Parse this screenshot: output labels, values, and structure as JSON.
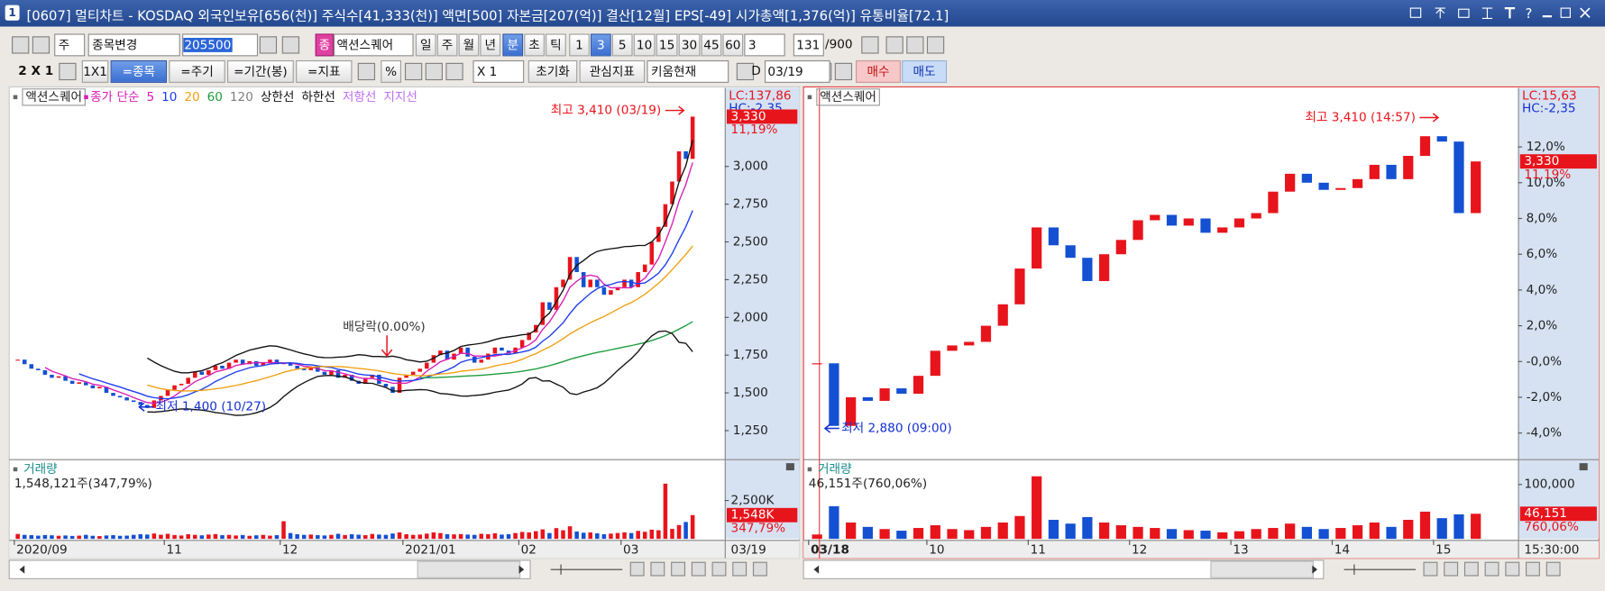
{
  "window": {
    "icon": "1",
    "title": "[0607] 멀티차트 - KOSDAQ 외국인보유[656(천)] 주식수[41,333(천)] 액면[500] 자본금[207(억)] 결산[12월] EPS[-49] 시가총액[1,376(억)] 유통비율[72.1]"
  },
  "toolbar": {
    "row1": [
      {
        "text": "주"
      },
      {
        "text": "종목변경"
      },
      {
        "text": "205500",
        "selected": true
      },
      {
        "text": "종"
      },
      {
        "text": "액션스퀘어"
      },
      {
        "text": "일"
      },
      {
        "text": "주"
      },
      {
        "text": "월"
      },
      {
        "text": "년"
      },
      {
        "text": "분",
        "selected": true
      },
      {
        "text": "초"
      },
      {
        "text": "틱"
      },
      {
        "text": "1"
      },
      {
        "text": "3",
        "selected": true
      },
      {
        "text": "5"
      },
      {
        "text": "10"
      },
      {
        "text": "15"
      },
      {
        "text": "30"
      },
      {
        "text": "45"
      },
      {
        "text": "60"
      },
      {
        "text": "3"
      },
      {
        "text": "131"
      },
      {
        "text": "/900"
      }
    ],
    "row2": [
      {
        "text": "2 X 1"
      },
      {
        "text": "1X1"
      },
      {
        "text": "=종목",
        "selected": true
      },
      {
        "text": "=주기"
      },
      {
        "text": "=기간(봉)"
      },
      {
        "text": "=지표"
      },
      {
        "text": "%"
      },
      {
        "text": "X 1"
      },
      {
        "text": "초기화"
      },
      {
        "text": "관심지표"
      },
      {
        "text": "키움현재"
      },
      {
        "text": "D"
      },
      {
        "text": "03/19"
      },
      {
        "text": "매수"
      },
      {
        "text": "매도"
      }
    ]
  },
  "chart_data": [
    {
      "type": "candlestick",
      "legend_box": "액션스퀘어",
      "indicators": [
        {
          "name": "종가 단순",
          "color": "#d81cb4"
        },
        {
          "name": "5",
          "color": "#d81cb4",
          "line": "ma"
        },
        {
          "name": "10",
          "color": "#1c3cf0",
          "line": "ma"
        },
        {
          "name": "20",
          "color": "#f0a010",
          "line": "ma"
        },
        {
          "name": "60",
          "color": "#1c9c3c",
          "line": "ma"
        },
        {
          "name": "120",
          "color": "#808080",
          "line": "ma"
        },
        {
          "name": "상한선",
          "color": "#111111",
          "line": "upper"
        },
        {
          "name": "하한선",
          "color": "#111111",
          "line": "lower"
        },
        {
          "name": "저항선",
          "color": "#c070f0"
        },
        {
          "name": "지지선",
          "color": "#c070f0"
        }
      ],
      "colors": {
        "up": "#e8141c",
        "down": "#1450d2"
      },
      "values": [
        1720,
        1690,
        1660,
        1650,
        1620,
        1600,
        1610,
        1580,
        1560,
        1570,
        1550,
        1530,
        1540,
        1500,
        1480,
        1470,
        1450,
        1440,
        1420,
        1400,
        1450,
        1480,
        1520,
        1550,
        1560,
        1600,
        1640,
        1620,
        1650,
        1680,
        1660,
        1700,
        1720,
        1690,
        1710,
        1680,
        1700,
        1720,
        1690,
        1700,
        1680,
        1660,
        1650,
        1670,
        1640,
        1620,
        1650,
        1600,
        1620,
        1580,
        1560,
        1600,
        1620,
        1560,
        1540,
        1500,
        1600,
        1620,
        1640,
        1660,
        1700,
        1750,
        1780,
        1720,
        1760,
        1800,
        1740,
        1700,
        1720,
        1760,
        1800,
        1780,
        1760,
        1800,
        1850,
        1900,
        1950,
        2100,
        2050,
        2200,
        2250,
        2400,
        2300,
        2200,
        2250,
        2200,
        2150,
        2180,
        2200,
        2250,
        2200,
        2300,
        2350,
        2500,
        2600,
        2750,
        2900,
        3100,
        3050,
        3330
      ],
      "ylim": [
        1068,
        3520
      ],
      "yticks": [
        {
          "value": 1250,
          "label": "1,250"
        },
        {
          "value": 1500,
          "label": "1,500"
        },
        {
          "value": 1750,
          "label": "1,750"
        },
        {
          "value": 2000,
          "label": "2,000"
        },
        {
          "value": 2250,
          "label": "2,250"
        },
        {
          "value": 2500,
          "label": "2,500"
        },
        {
          "value": 2750,
          "label": "2,750"
        },
        {
          "value": 3000,
          "label": "3,000"
        }
      ],
      "xticks": [
        {
          "value": 0,
          "label": "2020/09"
        },
        {
          "value": 22,
          "label": "11"
        },
        {
          "value": 39,
          "label": "12"
        },
        {
          "value": 57,
          "label": "2021/01"
        },
        {
          "value": 74,
          "label": "02"
        },
        {
          "value": 89,
          "label": "03"
        }
      ],
      "x_end_label": "03/19",
      "annotations": [
        {
          "text": "최고 3,410 (03/19)",
          "color": "#e8141c"
        },
        {
          "text": "최저 1,400 (10/27)",
          "color": "#1430d0"
        },
        {
          "text": "배당락(0.00%)",
          "color": "#333333"
        }
      ],
      "lc_label": "LC:137,86",
      "hc_label": "HC:-2,35",
      "last_label": "3,330",
      "change_label": "11,19%",
      "volume": {
        "title": "거래량",
        "summary": "1,548,121주(347,79%)",
        "values": [
          320000,
          260000,
          240000,
          210000,
          250000,
          230000,
          200000,
          220000,
          190000,
          210000,
          260000,
          200000,
          180000,
          220000,
          240000,
          200000,
          210000,
          260000,
          300000,
          280000,
          350000,
          270000,
          330000,
          250000,
          220000,
          300000,
          260000,
          230000,
          280000,
          310000,
          240000,
          260000,
          220000,
          250000,
          200000,
          230000,
          260000,
          210000,
          240000,
          1150000,
          380000,
          300000,
          260000,
          280000,
          240000,
          220000,
          260000,
          330000,
          250000,
          300000,
          270000,
          240000,
          320000,
          280000,
          260000,
          350000,
          420000,
          300000,
          260000,
          280000,
          340000,
          420000,
          380000,
          300000,
          290000,
          310000,
          280000,
          260000,
          330000,
          300000,
          360000,
          280000,
          300000,
          380000,
          450000,
          420000,
          500000,
          620000,
          380000,
          700000,
          560000,
          820000,
          480000,
          400000,
          420000,
          360000,
          300000,
          340000,
          380000,
          420000,
          380000,
          520000,
          460000,
          600000,
          560000,
          3600000,
          650000,
          900000,
          1100000,
          1548121
        ],
        "ylim": [
          0,
          5000000
        ],
        "yticks": [
          {
            "value": 2500000,
            "label": "2,500K"
          }
        ],
        "last_label": "1,548K",
        "change_label": "347,79%"
      }
    },
    {
      "type": "candlestick",
      "legend_box": "액션스퀘어",
      "colors": {
        "up": "#e8141c",
        "down": "#1450d2"
      },
      "values": [
        -0.1,
        -3.6,
        -2.0,
        -2.2,
        -1.5,
        -1.8,
        -0.8,
        0.6,
        0.9,
        1.1,
        2.0,
        3.2,
        5.2,
        7.5,
        6.5,
        5.8,
        4.5,
        6.0,
        6.8,
        7.9,
        8.2,
        7.6,
        8.0,
        7.2,
        7.5,
        8.0,
        8.3,
        9.5,
        10.5,
        10.0,
        9.6,
        9.7,
        10.2,
        11.0,
        10.2,
        11.5,
        12.6,
        12.3,
        8.3,
        11.19
      ],
      "ylim": [
        -5.4,
        15.3
      ],
      "yticks": [
        {
          "value": -4,
          "label": "-4,0%"
        },
        {
          "value": -2,
          "label": "-2,0%"
        },
        {
          "value": 0,
          "label": "-0,0%"
        },
        {
          "value": 2,
          "label": "2,0%"
        },
        {
          "value": 4,
          "label": "4,0%"
        },
        {
          "value": 6,
          "label": "6,0%"
        },
        {
          "value": 8,
          "label": "8,0%"
        },
        {
          "value": 10,
          "label": "10,0%"
        },
        {
          "value": 12,
          "label": "12,0%"
        }
      ],
      "xticks": [
        {
          "value": 0,
          "label": "03/18"
        },
        {
          "value": 7,
          "label": "10"
        },
        {
          "value": 13,
          "label": "11"
        },
        {
          "value": 19,
          "label": "12"
        },
        {
          "value": 25,
          "label": "13"
        },
        {
          "value": 31,
          "label": "14"
        },
        {
          "value": 37,
          "label": "15"
        }
      ],
      "x_end_label": "15:30:00",
      "annotations": [
        {
          "text": "최고 3,410 (14:57)",
          "color": "#e8141c"
        },
        {
          "text": "최저 2,880 (09:00)",
          "color": "#1430d0"
        }
      ],
      "lc_label": "LC:15,63",
      "hc_label": "HC:-2,35",
      "last_label": "3,330",
      "change_label": "11,19%",
      "volume": {
        "title": "거래량",
        "summary": "46,151주(760,06%)",
        "values": [
          8000,
          60000,
          30000,
          22000,
          18000,
          15000,
          20000,
          25000,
          18000,
          16000,
          22000,
          30000,
          42000,
          115000,
          35000,
          28000,
          40000,
          30000,
          25000,
          22000,
          20000,
          18000,
          16000,
          15000,
          12000,
          14000,
          18000,
          20000,
          28000,
          22000,
          18000,
          20000,
          25000,
          30000,
          22000,
          35000,
          50000,
          38000,
          45000,
          46151
        ],
        "ylim": [
          0,
          141000
        ],
        "yticks": [
          {
            "value": 100000,
            "label": "100,000"
          }
        ],
        "last_label": "46,151",
        "change_label": "760,06%"
      }
    }
  ]
}
